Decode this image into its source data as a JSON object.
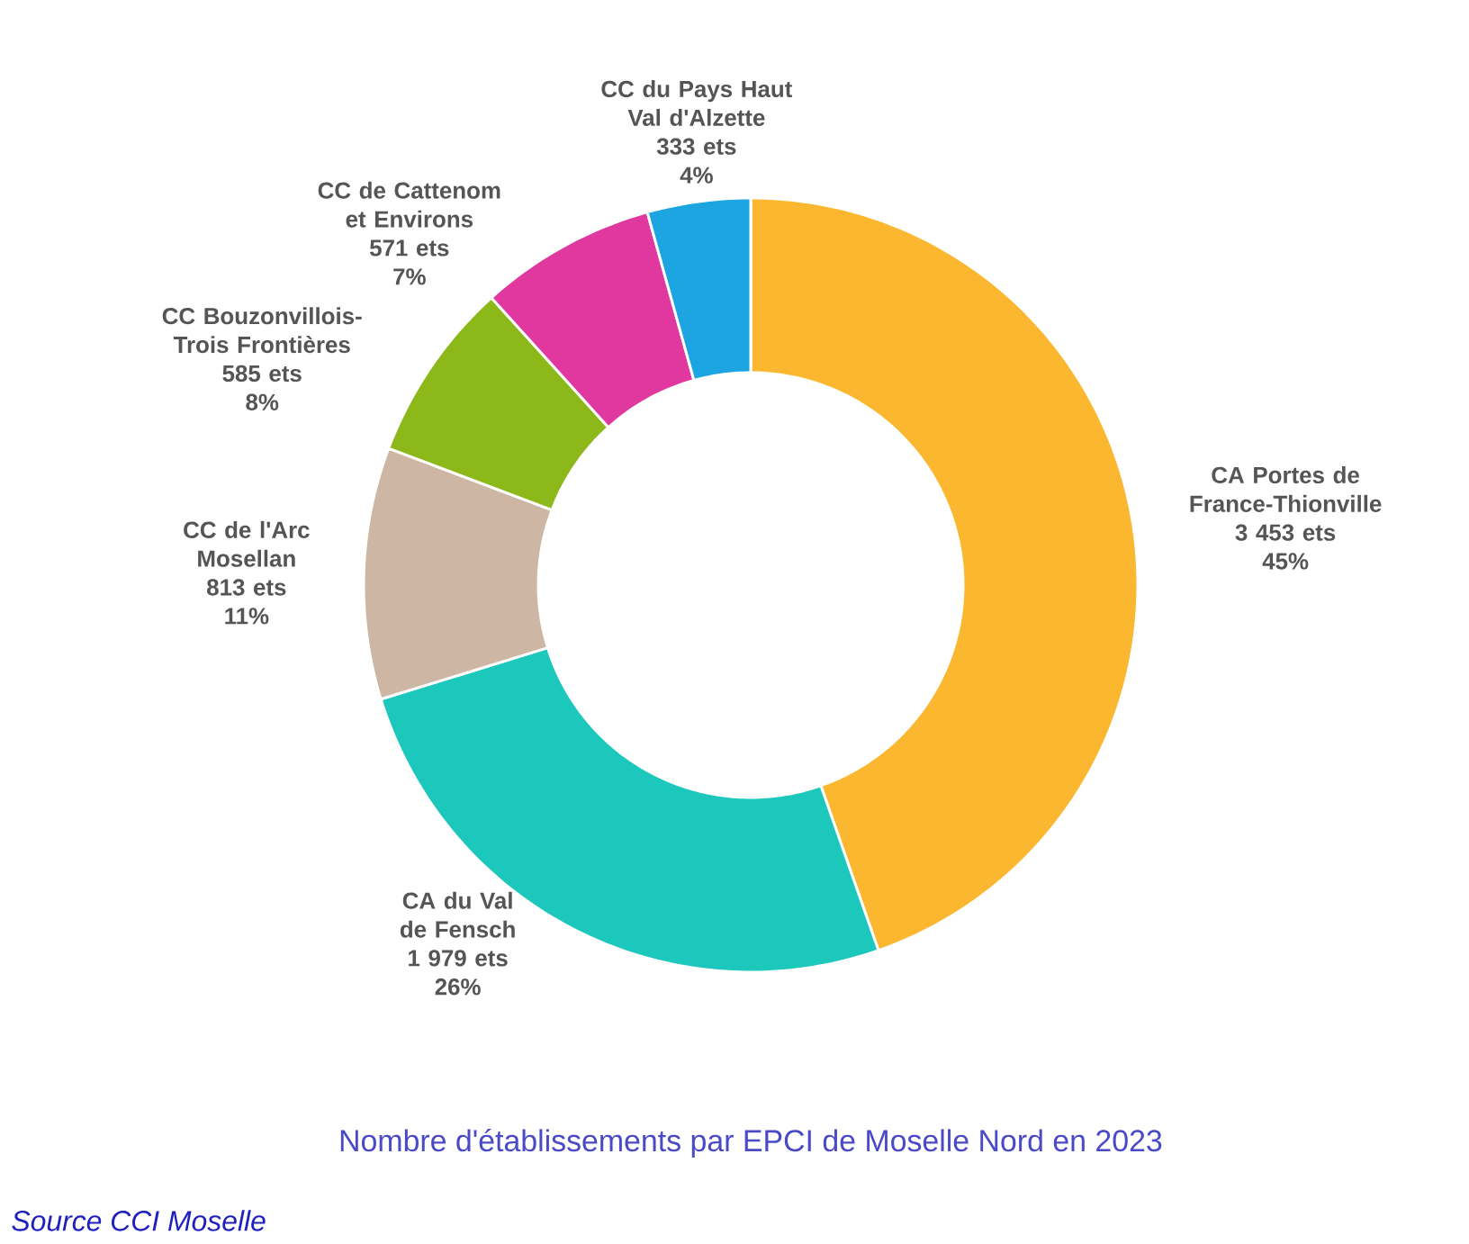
{
  "chart_data": {
    "type": "donut",
    "title": "Nombre d'établissements par EPCI de Moselle Nord en 2023",
    "categories": [
      "CA Portes de France-Thionville",
      "CA du Val de Fensch",
      "CC de l'Arc Mosellan",
      "CC Bouzonvillois-Trois Frontières",
      "CC de Cattenom et Environs",
      "CC du Pays Haut Val d'Alzette"
    ],
    "values": [
      3453,
      1979,
      813,
      585,
      571,
      333
    ],
    "value_labels": [
      "3 453 ets",
      "1 979 ets",
      "813 ets",
      "585 ets",
      "571 ets",
      "333 ets"
    ],
    "colors": [
      "#fbb72f",
      "#1cc7bc",
      "#cdb6a3",
      "#8db81a",
      "#e0389e",
      "#1da5e2"
    ],
    "annotations": [
      "45%",
      "26%",
      "11%",
      "8%",
      "7%",
      "4%",
      "Source CCI Moselle"
    ]
  }
}
